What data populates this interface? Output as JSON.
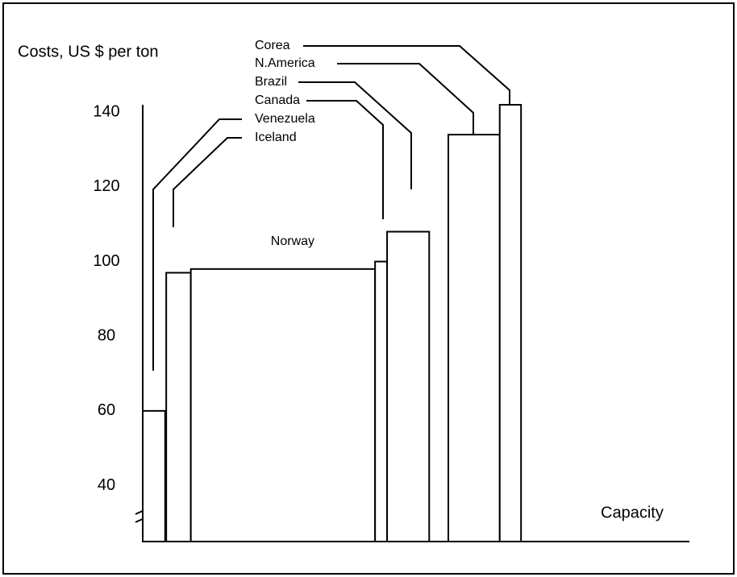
{
  "chart_data": {
    "type": "bar",
    "title": "Costs, US $ per ton",
    "x_label": "Capacity",
    "categories": [
      "Venezuela",
      "Iceland",
      "Norway",
      "Canada",
      "Brazil",
      "N.America",
      "Corea"
    ],
    "values": [
      60,
      97,
      98,
      100,
      108,
      134,
      142
    ],
    "edges": [
      [
        0,
        4.1
      ],
      [
        4.3,
        8.8
      ],
      [
        8.8,
        42.5
      ],
      [
        42.5,
        44.7
      ],
      [
        44.7,
        52.4
      ],
      [
        55.9,
        65.3
      ],
      [
        65.3,
        69.2
      ]
    ],
    "color": "#ffffff",
    "xlim": [
      0,
      100
    ],
    "ylim": [
      25,
      142
    ],
    "yticks": [
      40,
      60,
      80,
      100,
      120,
      140
    ]
  }
}
